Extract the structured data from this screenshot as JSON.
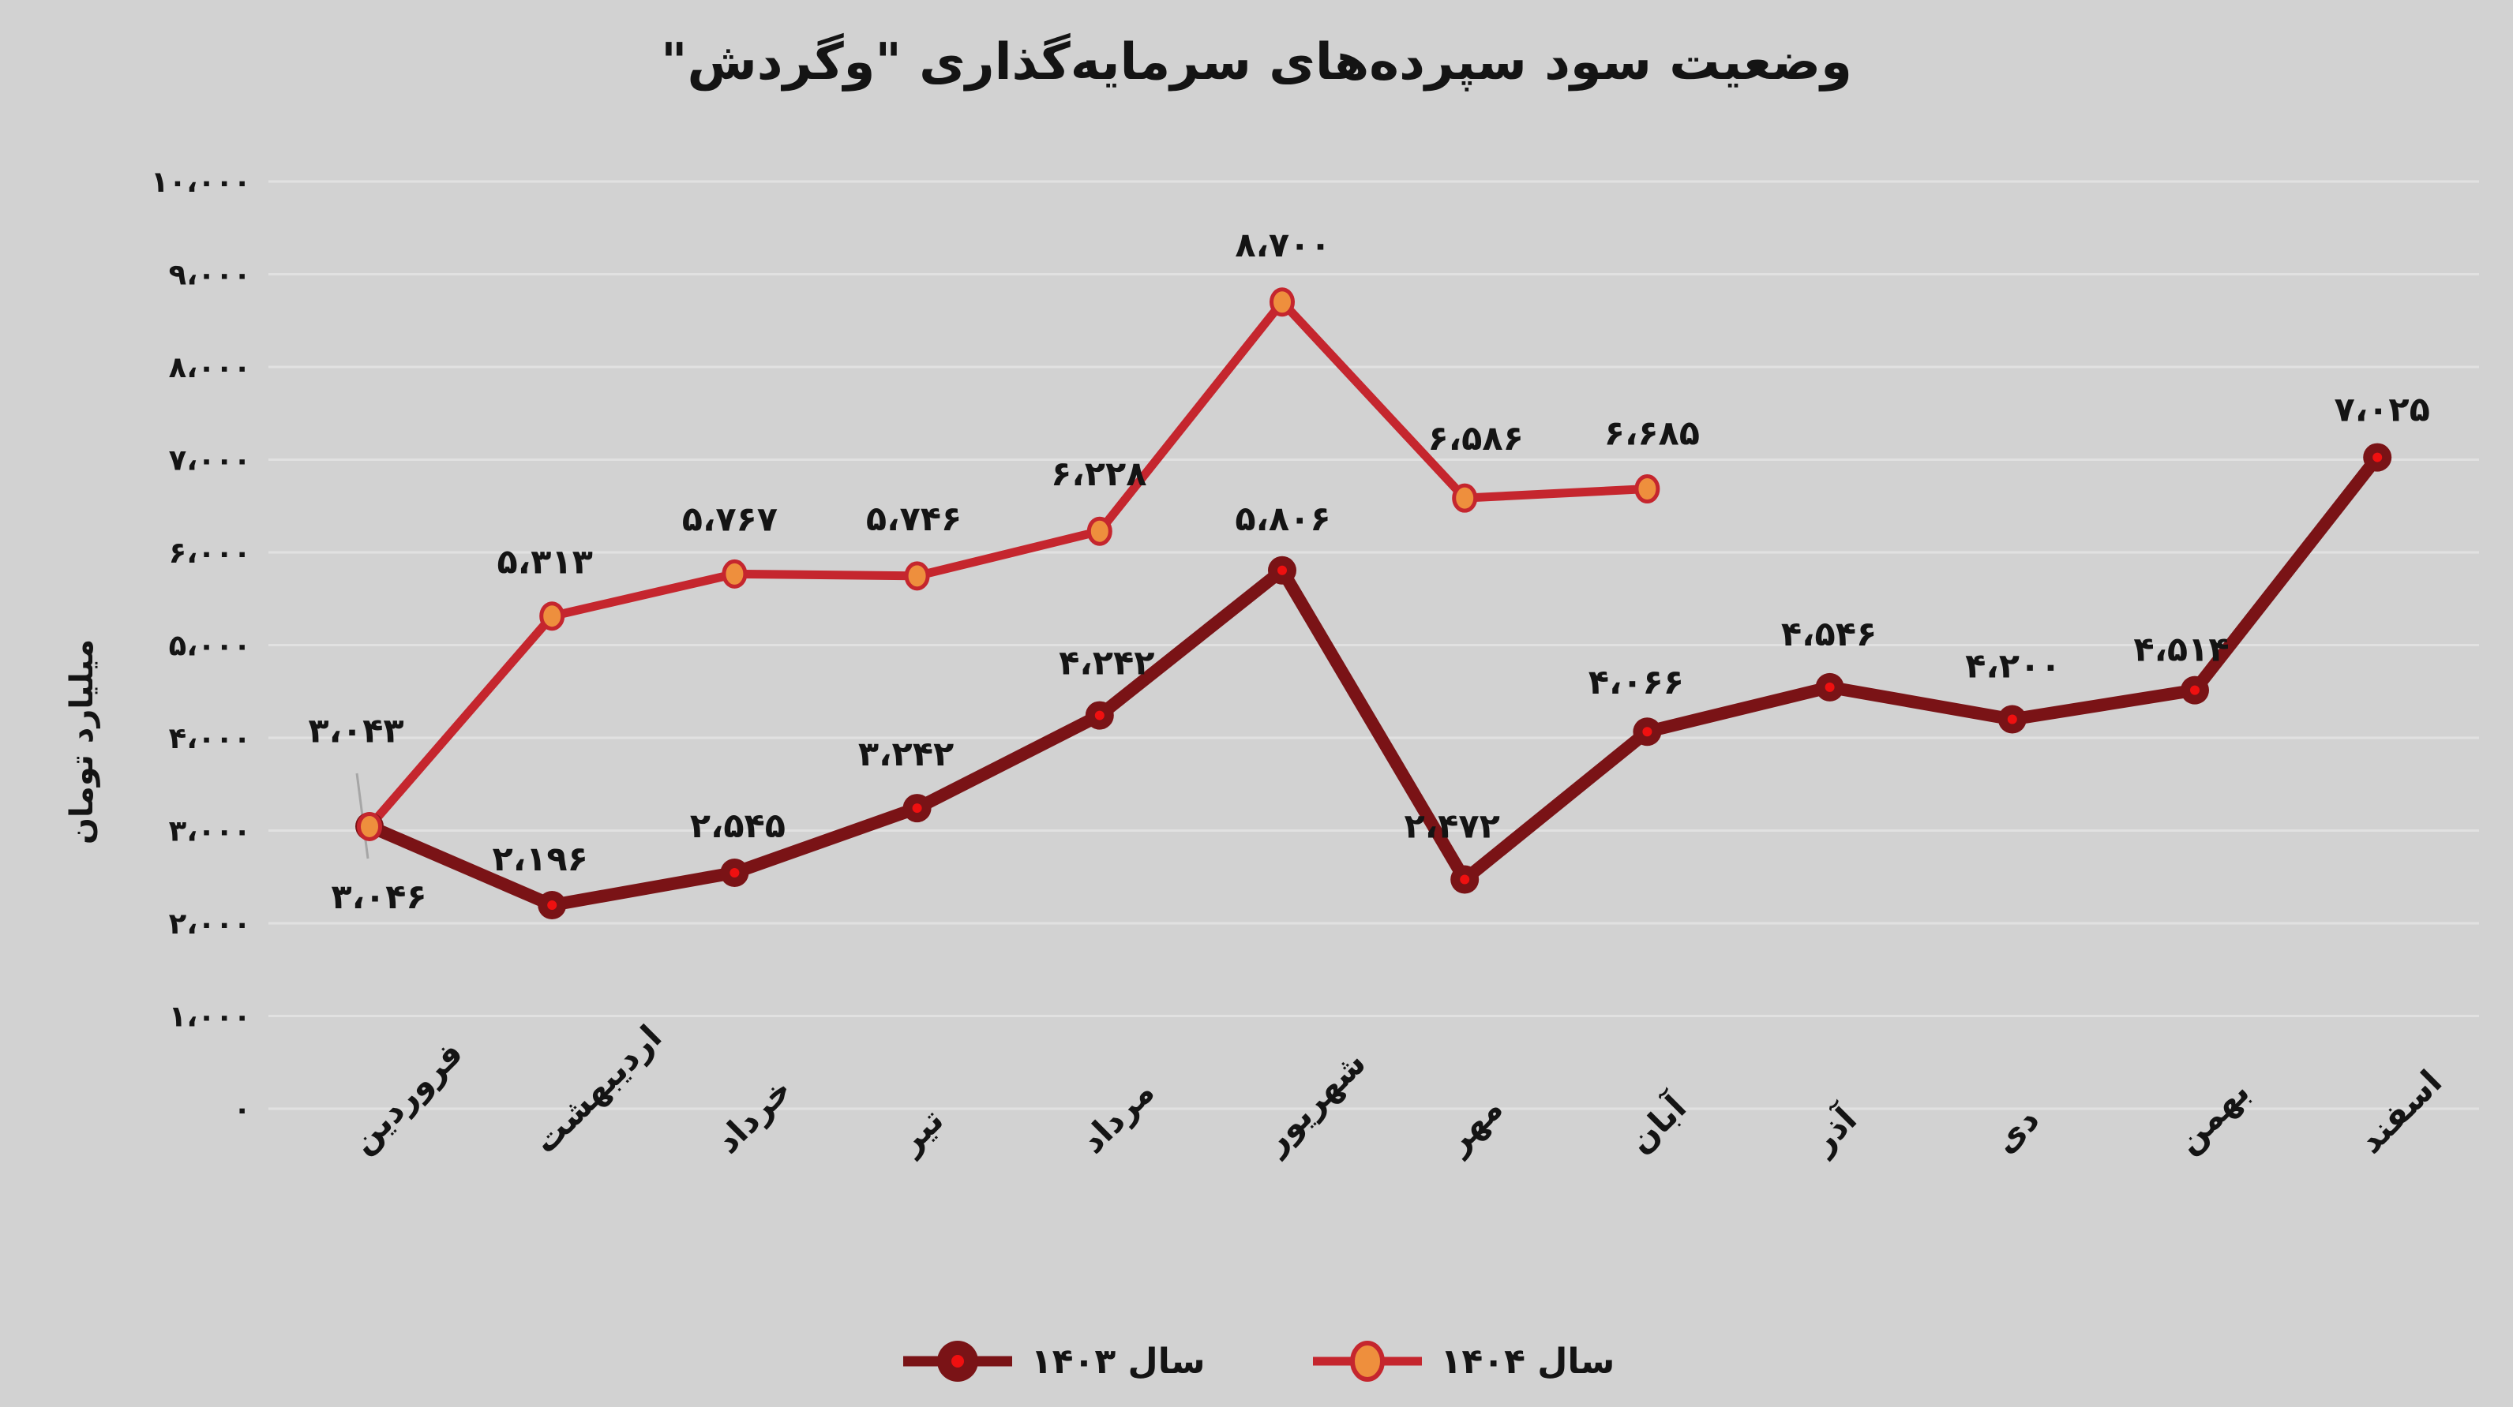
{
  "title": "وضعیت سود سپرده‌های سرمایه‌گذاری \"وگردش\"",
  "y_axis": {
    "title": "میلیارد تومان",
    "ticks": [
      "۰",
      "۱،۰۰۰",
      "۲،۰۰۰",
      "۳،۰۰۰",
      "۴،۰۰۰",
      "۵،۰۰۰",
      "۶،۰۰۰",
      "۷،۰۰۰",
      "۸،۰۰۰",
      "۹،۰۰۰",
      "۱۰،۰۰۰"
    ]
  },
  "x_axis": {
    "labels": [
      "فروردین",
      "اردیبهشت",
      "خرداد",
      "تیر",
      "مرداد",
      "شهریور",
      "مهر",
      "آبان",
      "آذر",
      "دی",
      "بهمن",
      "اسفند"
    ]
  },
  "legend": {
    "items": [
      {
        "label": "سال ۱۴۰۳"
      },
      {
        "label": "سال ۱۴۰۴"
      }
    ]
  },
  "theme": {
    "background": "#D2D2D2",
    "grid": "#E1E1E1",
    "text": "#141414",
    "leader": "#A6A6A6",
    "series_1403": "#7A1316",
    "series_1403_dot": "#EF1010",
    "series_1404": "#C5262E",
    "series_1404_marker": "#EE8F3D"
  },
  "chart_data": {
    "type": "line",
    "categories": [
      "فروردین",
      "اردیبهشت",
      "خرداد",
      "تیر",
      "مرداد",
      "شهریور",
      "مهر",
      "آبان",
      "آذر",
      "دی",
      "بهمن",
      "اسفند"
    ],
    "title": "وضعیت سود سپرده‌های سرمایه‌گذاری \"وگردش\"",
    "xlabel": "",
    "ylabel": "میلیارد تومان",
    "ylim": [
      0,
      10000
    ],
    "y_step": 1000,
    "grid": "horizontal",
    "legend_position": "bottom",
    "series": [
      {
        "id": "1403",
        "name": "سال ۱۴۰۳",
        "color": "#7A1316",
        "marker": "circle-dot",
        "marker_dot": "#EF1010",
        "values": [
          3046,
          2196,
          2545,
          3242,
          4242,
          5806,
          2472,
          4066,
          4546,
          4200,
          4514,
          7025
        ],
        "labels": [
          "۳،۰۴۶",
          "۲،۱۹۶",
          "۲،۵۴۵",
          "۳،۲۴۲",
          "۴،۲۴۲",
          "۵،۸۰۶",
          "۲،۴۷۲",
          "۴،۰۶۶",
          "۴،۵۴۶",
          "۴،۲۰۰",
          "۴،۵۱۴",
          "۷،۰۲۵"
        ]
      },
      {
        "id": "1404",
        "name": "سال ۱۴۰۴",
        "color": "#C5262E",
        "marker": "ellipse",
        "marker_fill": "#EE8F3D",
        "values": [
          3043,
          5313,
          5767,
          5746,
          6228,
          8700,
          6586,
          6685
        ],
        "labels": [
          "۳،۰۴۳",
          "۵،۳۱۳",
          "۵،۷۶۷",
          "۵،۷۴۶",
          "۶،۲۲۸",
          "۸،۷۰۰",
          "۶،۵۸۶",
          "۶،۶۸۵"
        ]
      }
    ]
  }
}
